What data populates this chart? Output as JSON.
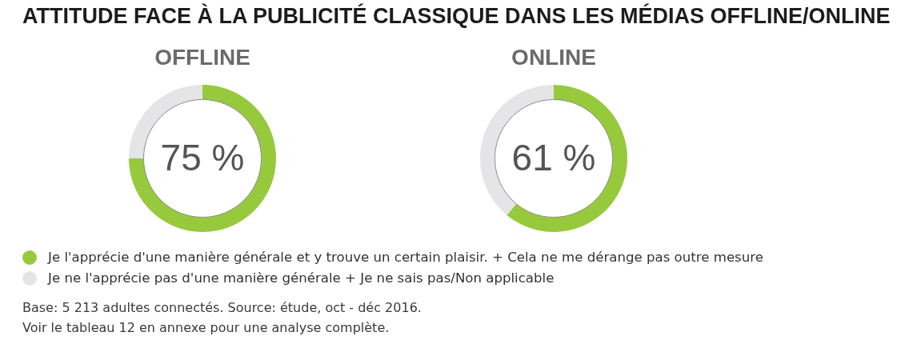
{
  "chart_data": [
    {
      "type": "other",
      "title": "ATTITUDE FACE À LA PUBLICITÉ CLASSIQUE DANS LES MÉDIAS OFFLINE/ONLINE"
    },
    {
      "type": "donut",
      "title": "OFFLINE",
      "categories": [
        "Je l'apprécie d'une manière générale et y trouve un certain plaisir. + Cela ne me dérange pas outre mesure",
        "Je ne l'apprécie pas d'une manière générale + Je ne sais pas/Non applicable"
      ],
      "values": [
        75,
        25
      ],
      "colors": [
        "#97c93d",
        "#e5e5e7"
      ],
      "value_labels": [
        "75 %",
        null
      ],
      "legend": "bottom"
    },
    {
      "type": "donut",
      "title": "ONLINE",
      "categories": [
        null,
        null
      ],
      "values": [
        61,
        39
      ],
      "colors": [
        "#97c93d",
        "#e5e5e7"
      ],
      "value_labels": [
        "61 %",
        null
      ]
    },
    {
      "type": "other",
      "annotations": [
        "Base: 5 213 adultes connectés. Source: étude, oct - déc 2016.",
        "Voir le tableau 12 en annexe pour une analyse complète."
      ]
    }
  ]
}
